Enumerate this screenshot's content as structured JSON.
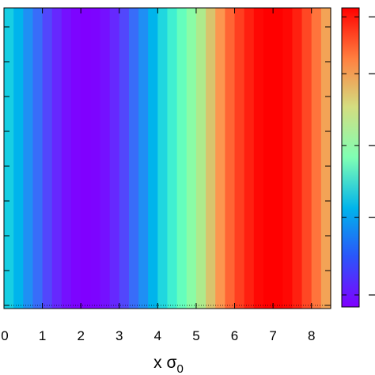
{
  "chart_data": {
    "type": "heatmap",
    "title": "",
    "xlabel": "x σ",
    "xlabel_subscript": "0",
    "ylabel": "",
    "xlim": [
      0,
      8.5
    ],
    "x_ticks": [
      0,
      1,
      2,
      3,
      4,
      5,
      6,
      7,
      8
    ],
    "x_tick_labels": [
      "0",
      "1",
      "2",
      "3",
      "4",
      "5",
      "6",
      "7",
      "8"
    ],
    "y_ticks_count": 9,
    "colorbar": {
      "range": [
        0,
        1
      ],
      "tick_values": [
        0.04,
        0.3,
        0.54,
        0.78,
        0.97
      ]
    },
    "columns": {
      "x_step": 0.25,
      "values": [
        0.3,
        0.25,
        0.19,
        0.14,
        0.09,
        0.05,
        0.02,
        0.005,
        0.0,
        0.005,
        0.02,
        0.05,
        0.09,
        0.14,
        0.19,
        0.25,
        0.32,
        0.39,
        0.47,
        0.55,
        0.63,
        0.72,
        0.8,
        0.87,
        0.92,
        0.96,
        0.99,
        1.0,
        1.0,
        0.99,
        0.96,
        0.91,
        0.85,
        0.78
      ]
    }
  }
}
